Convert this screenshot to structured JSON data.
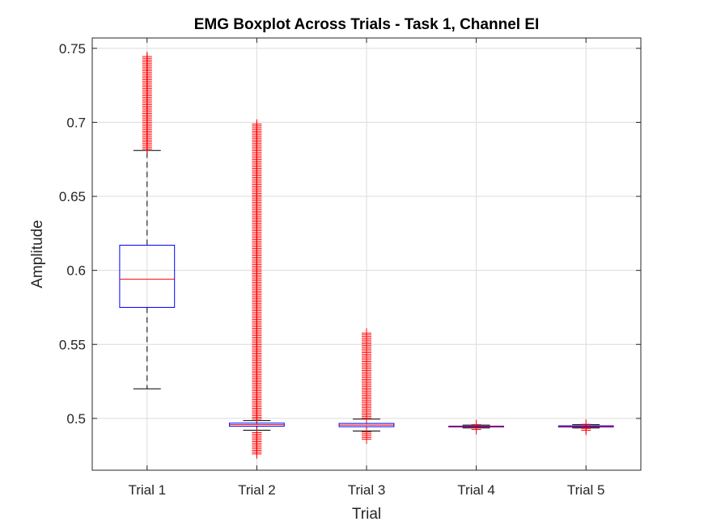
{
  "chart_data": {
    "type": "boxplot",
    "title": "EMG Boxplot Across Trials - Task 1, Channel EI",
    "xlabel": "Trial",
    "ylabel": "Amplitude",
    "categories": [
      "Trial 1",
      "Trial 2",
      "Trial 3",
      "Trial 4",
      "Trial 5"
    ],
    "ylim": [
      0.465,
      0.757
    ],
    "yticks": [
      0.5,
      0.55,
      0.6,
      0.65,
      0.7,
      0.75
    ],
    "ytick_labels": [
      "0.5",
      "0.55",
      "0.6",
      "0.65",
      "0.7",
      "0.75"
    ],
    "grid": true,
    "boxes": [
      {
        "name": "Trial 1",
        "whisker_low": 0.52,
        "q1": 0.575,
        "median": 0.594,
        "q3": 0.617,
        "whisker_high": 0.681,
        "outliers_low": [],
        "outliers_high_range": [
          0.682,
          0.745
        ]
      },
      {
        "name": "Trial 2",
        "whisker_low": 0.492,
        "q1": 0.4947,
        "median": 0.4958,
        "q3": 0.4968,
        "whisker_high": 0.4985,
        "outliers_low_range": [
          0.476,
          0.491
        ],
        "outliers_high_range": [
          0.4995,
          0.7
        ]
      },
      {
        "name": "Trial 3",
        "whisker_low": 0.4915,
        "q1": 0.4944,
        "median": 0.4955,
        "q3": 0.4966,
        "whisker_high": 0.4995,
        "outliers_low_range": [
          0.486,
          0.491
        ],
        "outliers_high_range": [
          0.5,
          0.558
        ]
      },
      {
        "name": "Trial 4",
        "whisker_low": 0.4935,
        "q1": 0.4942,
        "median": 0.4945,
        "q3": 0.4948,
        "whisker_high": 0.4955,
        "outliers_low_range": [
          0.4925,
          0.4932
        ],
        "outliers_high_range": [
          0.4958,
          0.4965
        ]
      },
      {
        "name": "Trial 5",
        "whisker_low": 0.4935,
        "q1": 0.4942,
        "median": 0.4946,
        "q3": 0.495,
        "whisker_high": 0.4958,
        "outliers_low_range": [
          0.492,
          0.4932
        ],
        "outliers_high_range": [
          0.496,
          0.4968
        ]
      }
    ],
    "colors": {
      "box": "#0000ff",
      "median": "#ff0000",
      "whisker": "#000000",
      "outlier": "#ff0000",
      "grid": "#dcdcdc",
      "axes": "#262626"
    }
  }
}
